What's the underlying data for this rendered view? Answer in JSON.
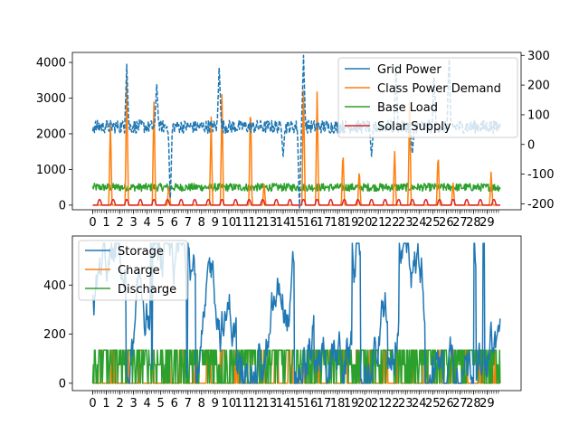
{
  "chart_data": [
    {
      "type": "line",
      "x_tick_labels": [
        "0",
        "1",
        "2",
        "3",
        "4",
        "5",
        "6",
        "7",
        "8",
        "9",
        "10",
        "11",
        "12",
        "13",
        "14",
        "15",
        "16",
        "17",
        "18",
        "19",
        "20",
        "21",
        "22",
        "23",
        "24",
        "25",
        "26",
        "27",
        "28",
        "29"
      ],
      "x_range": [
        -1.5,
        31.5
      ],
      "left_axis": {
        "ylim": [
          -130,
          4280
        ],
        "ticks": [
          0,
          1000,
          2000,
          3000,
          4000
        ]
      },
      "right_axis": {
        "ylim": [
          -220,
          310
        ],
        "ticks": [
          -200,
          -100,
          0,
          100,
          200,
          300
        ]
      },
      "legend": {
        "placement": "top-right"
      },
      "series": [
        {
          "name": "Grid Power",
          "axis": "right",
          "color": "#1f77b4",
          "style": "dashed",
          "baseline": 60,
          "noise": 22,
          "min": -220,
          "max": 305,
          "spikes": [
            [
              2.5,
              270
            ],
            [
              4.7,
              210
            ],
            [
              9.3,
              270
            ],
            [
              15.5,
              300
            ],
            [
              22.3,
              260
            ],
            [
              25.1,
              245
            ],
            [
              26.2,
              300
            ]
          ],
          "dips": [
            [
              5.7,
              -195
            ],
            [
              14.0,
              -40
            ],
            [
              15.2,
              -230
            ],
            [
              20.5,
              -40
            ],
            [
              23.5,
              -30
            ]
          ]
        },
        {
          "name": "Class Power Demand",
          "axis": "left",
          "color": "#ff7f0e",
          "style": "solid",
          "peaks": [
            [
              1.3,
              2600
            ],
            [
              2.5,
              3950
            ],
            [
              4.5,
              3300
            ],
            [
              5.6,
              700
            ],
            [
              8.7,
              2700
            ],
            [
              9.5,
              3300
            ],
            [
              11.6,
              3300
            ],
            [
              12.6,
              700
            ],
            [
              15.5,
              3650
            ],
            [
              16.5,
              3300
            ],
            [
              18.4,
              1800
            ],
            [
              19.6,
              1200
            ],
            [
              22.2,
              1650
            ],
            [
              23.3,
              3200
            ],
            [
              25.4,
              1700
            ],
            [
              26.5,
              700
            ],
            [
              29.3,
              1000
            ]
          ]
        },
        {
          "name": "Base Load",
          "axis": "left",
          "color": "#2ca02c",
          "style": "solid",
          "baseline": 500,
          "noise": 110
        },
        {
          "name": "Solar Supply",
          "axis": "left",
          "color": "#d62728",
          "style": "solid",
          "daily_peak": 160
        }
      ]
    },
    {
      "type": "line",
      "x_tick_labels": [
        "0",
        "1",
        "2",
        "3",
        "4",
        "5",
        "6",
        "7",
        "8",
        "9",
        "10",
        "11",
        "12",
        "13",
        "14",
        "15",
        "16",
        "17",
        "18",
        "19",
        "20",
        "21",
        "22",
        "23",
        "24",
        "25",
        "26",
        "27",
        "28",
        "29"
      ],
      "x_range": [
        -1.5,
        31.5
      ],
      "ylim": [
        -30,
        600
      ],
      "y_ticks": [
        0,
        200,
        400
      ],
      "legend": {
        "placement": "top-left"
      },
      "series": [
        {
          "name": "Storage",
          "color": "#1f77b4",
          "min": 0,
          "max": 570
        },
        {
          "name": "Charge",
          "color": "#ff7f0e",
          "level": 135
        },
        {
          "name": "Discharge",
          "color": "#2ca02c",
          "levels": [
            135,
            75
          ]
        }
      ]
    }
  ]
}
